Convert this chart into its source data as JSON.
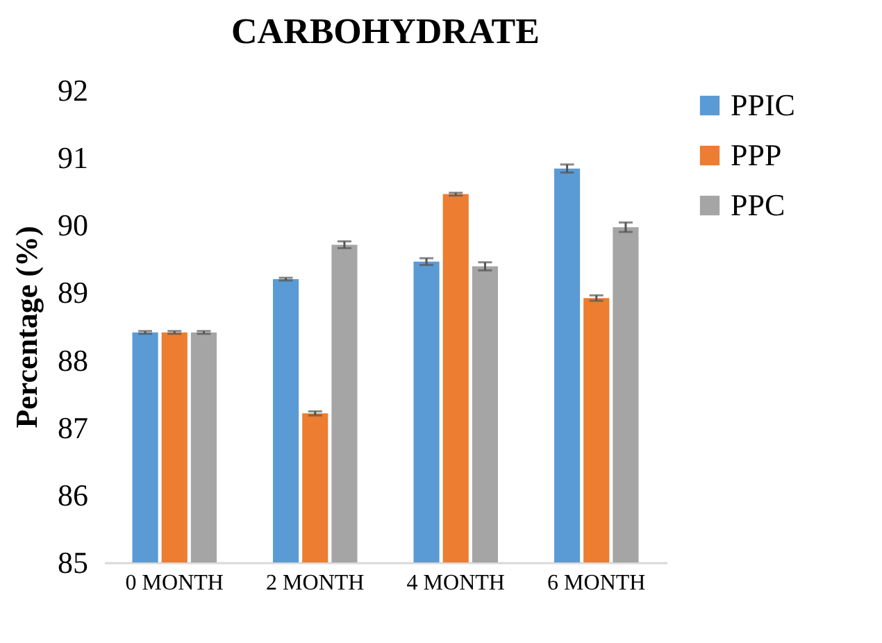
{
  "chart_data": {
    "type": "bar",
    "title": "CARBOHYDRATE",
    "ylabel": "Percentage (%)",
    "categories": [
      "0 MONTH",
      "2 MONTH",
      "4 MONTH",
      "6 MONTH"
    ],
    "series": [
      {
        "name": "PPIC",
        "color": "#5b9bd5",
        "values": [
          88.41,
          89.2,
          89.46,
          90.84
        ],
        "errors": [
          0.02,
          0.02,
          0.05,
          0.06
        ]
      },
      {
        "name": "PPP",
        "color": "#ed7d31",
        "values": [
          88.41,
          87.21,
          90.46,
          88.92
        ],
        "errors": [
          0.02,
          0.03,
          0.02,
          0.04
        ]
      },
      {
        "name": "PPC",
        "color": "#a5a5a5",
        "values": [
          88.41,
          89.71,
          89.39,
          89.97
        ],
        "errors": [
          0.02,
          0.05,
          0.06,
          0.07
        ]
      }
    ],
    "ylim": [
      85,
      92
    ],
    "yticks": [
      85,
      86,
      87,
      88,
      89,
      90,
      91,
      92
    ],
    "grid": false,
    "legend": "right"
  }
}
